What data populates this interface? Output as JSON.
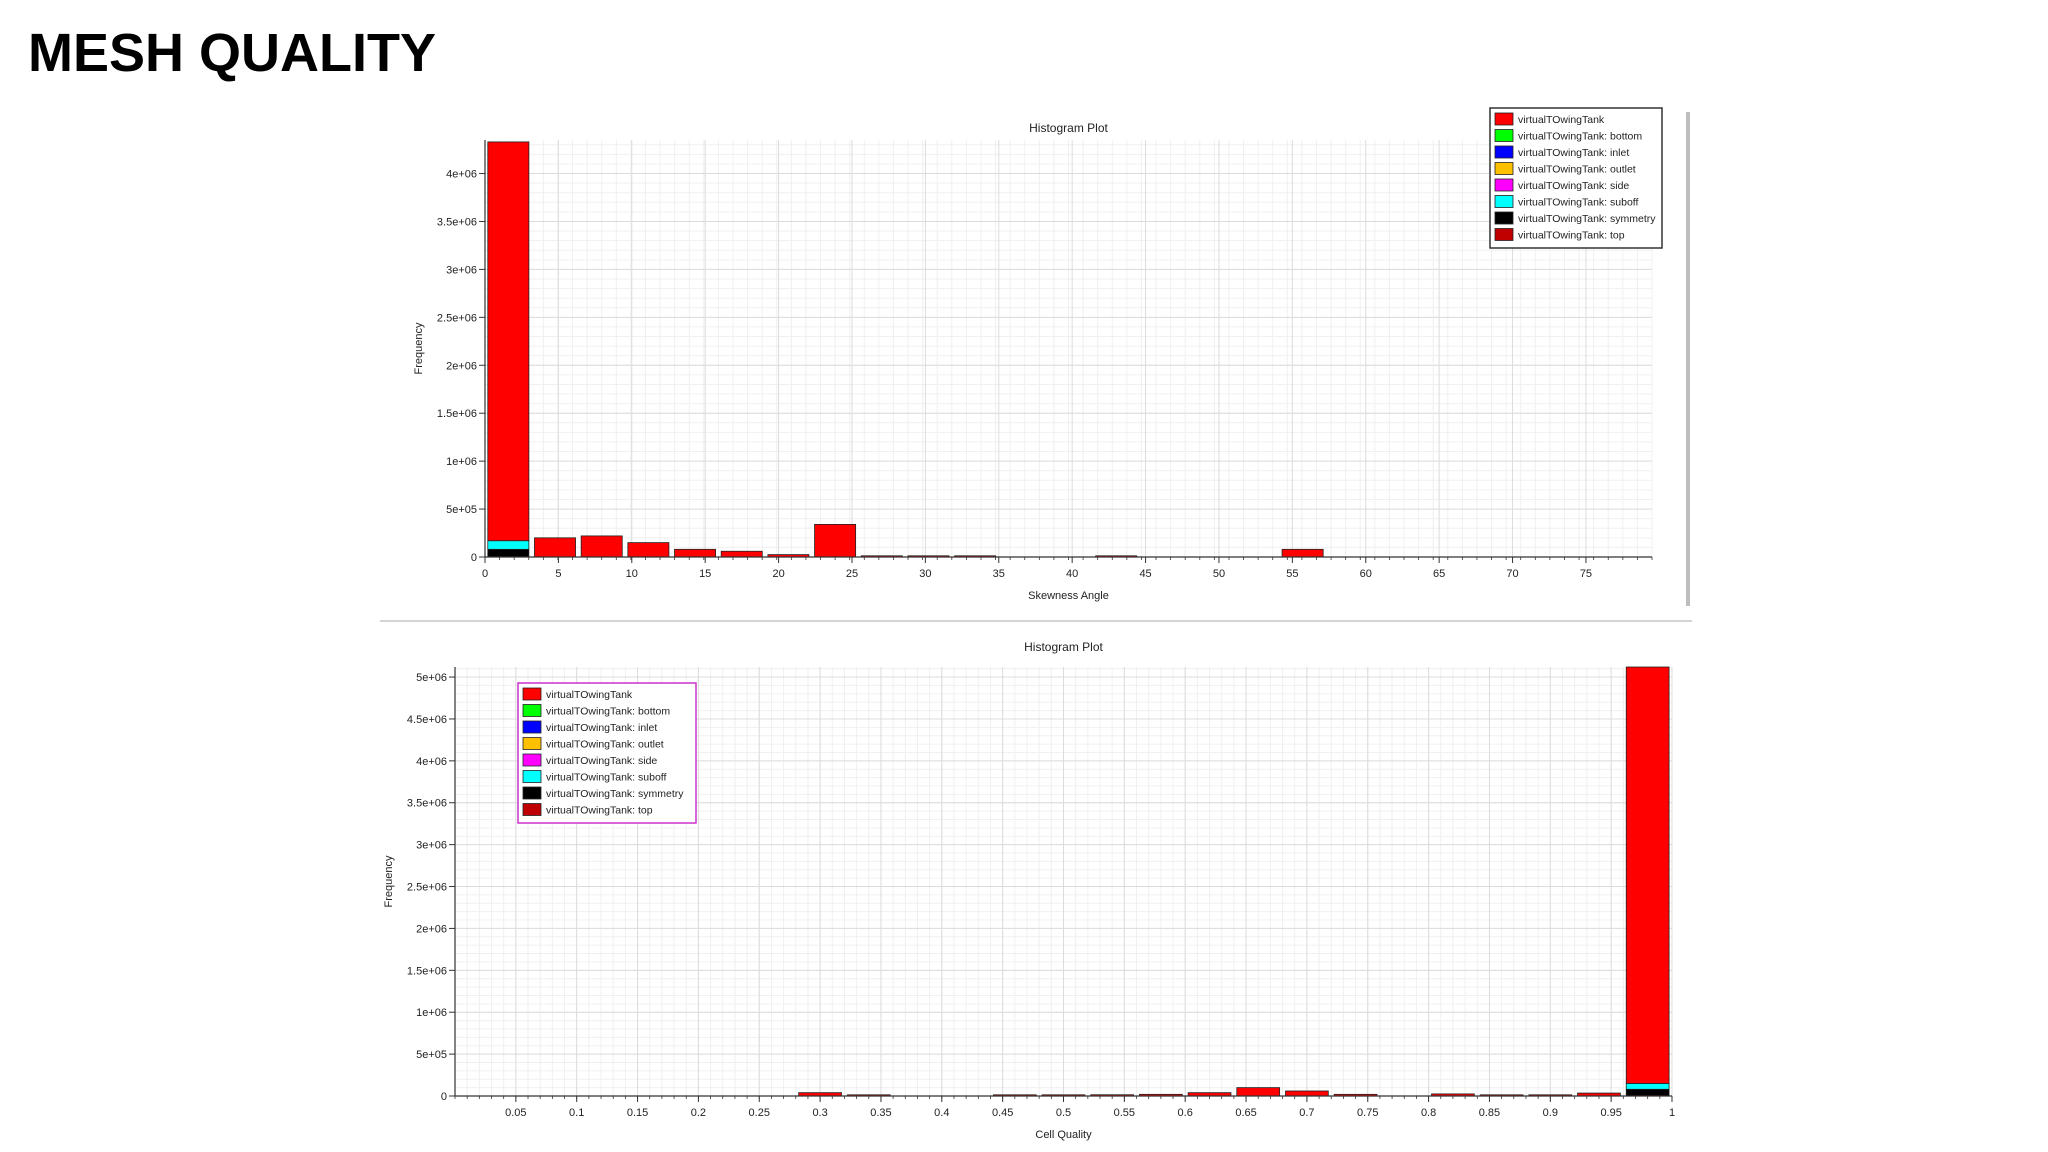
{
  "page": {
    "title": "MESH QUALITY"
  },
  "colors": {
    "red": "#ff0000",
    "green": "#00ff00",
    "blue": "#0000ff",
    "orange": "#ffc000",
    "magenta": "#ff00ff",
    "cyan": "#00ffff",
    "black": "#000000",
    "darkred": "#c00000"
  },
  "chart_data": [
    {
      "type": "bar",
      "title": "Histogram Plot",
      "xlabel": "Skewness Angle",
      "ylabel": "Frequency",
      "xlim": [
        0,
        79.5
      ],
      "ylim": [
        0,
        4350000
      ],
      "x_ticks": [
        0,
        5,
        10,
        15,
        20,
        25,
        30,
        35,
        40,
        45,
        50,
        55,
        60,
        65,
        70,
        75
      ],
      "x_tick_labels": [
        "0",
        "5",
        "10",
        "15",
        "20",
        "25",
        "30",
        "35",
        "40",
        "45",
        "50",
        "55",
        "60",
        "65",
        "70",
        "75"
      ],
      "y_ticks": [
        0,
        500000,
        1000000,
        1500000,
        2000000,
        2500000,
        3000000,
        3500000,
        4000000
      ],
      "y_tick_labels": [
        "0",
        "5e+05",
        "1e+06",
        "1.5e+06",
        "2e+06",
        "2.5e+06",
        "3e+06",
        "3.5e+06",
        "4e+06"
      ],
      "grid": true,
      "legend_position": "top-right",
      "legend_border": "#333333",
      "legend": [
        {
          "label": "virtualTOwingTank",
          "color": "#ff0000"
        },
        {
          "label": "virtualTOwingTank: bottom",
          "color": "#00ff00"
        },
        {
          "label": "virtualTOwingTank: inlet",
          "color": "#0000ff"
        },
        {
          "label": "virtualTOwingTank: outlet",
          "color": "#ffc000"
        },
        {
          "label": "virtualTOwingTank: side",
          "color": "#ff00ff"
        },
        {
          "label": "virtualTOwingTank: suboff",
          "color": "#00ffff"
        },
        {
          "label": "virtualTOwingTank: symmetry",
          "color": "#000000"
        },
        {
          "label": "virtualTOwingTank: top",
          "color": "#c00000"
        }
      ],
      "bin_width": 3.18,
      "bins": [
        {
          "center": 1.59,
          "segments": [
            {
              "value": 80000,
              "color": "#000000"
            },
            {
              "value": 90000,
              "color": "#00ffff"
            },
            {
              "value": 4160000,
              "color": "#ff0000"
            }
          ]
        },
        {
          "center": 4.77,
          "segments": [
            {
              "value": 200000,
              "color": "#ff0000"
            }
          ]
        },
        {
          "center": 7.95,
          "segments": [
            {
              "value": 220000,
              "color": "#ff0000"
            }
          ]
        },
        {
          "center": 11.13,
          "segments": [
            {
              "value": 150000,
              "color": "#ff0000"
            }
          ]
        },
        {
          "center": 14.31,
          "segments": [
            {
              "value": 80000,
              "color": "#ff0000"
            }
          ]
        },
        {
          "center": 17.49,
          "segments": [
            {
              "value": 60000,
              "color": "#ff0000"
            }
          ]
        },
        {
          "center": 20.67,
          "segments": [
            {
              "value": 25000,
              "color": "#ff0000"
            }
          ]
        },
        {
          "center": 23.85,
          "segments": [
            {
              "value": 340000,
              "color": "#ff0000"
            }
          ]
        },
        {
          "center": 27.03,
          "segments": [
            {
              "value": 4000,
              "color": "#ff0000"
            }
          ]
        },
        {
          "center": 30.21,
          "segments": [
            {
              "value": 6000,
              "color": "#ff0000"
            }
          ]
        },
        {
          "center": 33.39,
          "segments": [
            {
              "value": 3000,
              "color": "#ff0000"
            }
          ]
        },
        {
          "center": 43.0,
          "segments": [
            {
              "value": 3000,
              "color": "#ff0000"
            }
          ]
        },
        {
          "center": 55.7,
          "segments": [
            {
              "value": 80000,
              "color": "#ff0000"
            }
          ]
        }
      ]
    },
    {
      "type": "bar",
      "title": "Histogram Plot",
      "xlabel": "Cell Quality",
      "ylabel": "Frequency",
      "xlim": [
        0.0,
        1.0
      ],
      "ylim": [
        0,
        5120000
      ],
      "x_ticks": [
        0.05,
        0.1,
        0.15,
        0.2,
        0.25,
        0.3,
        0.35,
        0.4,
        0.45,
        0.5,
        0.55,
        0.6,
        0.65,
        0.7,
        0.75,
        0.8,
        0.85,
        0.9,
        0.95,
        1.0
      ],
      "x_tick_labels": [
        "0.05",
        "0.1",
        "0.15",
        "0.2",
        "0.25",
        "0.3",
        "0.35",
        "0.4",
        "0.45",
        "0.5",
        "0.55",
        "0.6",
        "0.65",
        "0.7",
        "0.75",
        "0.8",
        "0.85",
        "0.9",
        "0.95",
        "1"
      ],
      "y_ticks": [
        0,
        500000,
        1000000,
        1500000,
        2000000,
        2500000,
        3000000,
        3500000,
        4000000,
        4500000,
        5000000
      ],
      "y_tick_labels": [
        "0",
        "5e+05",
        "1e+06",
        "1.5e+06",
        "2e+06",
        "2.5e+06",
        "3e+06",
        "3.5e+06",
        "4e+06",
        "4.5e+06",
        "5e+06"
      ],
      "grid": true,
      "legend_position": "top-left",
      "legend_border": "#cc33cc",
      "legend": [
        {
          "label": "virtualTOwingTank",
          "color": "#ff0000"
        },
        {
          "label": "virtualTOwingTank: bottom",
          "color": "#00ff00"
        },
        {
          "label": "virtualTOwingTank: inlet",
          "color": "#0000ff"
        },
        {
          "label": "virtualTOwingTank: outlet",
          "color": "#ffc000"
        },
        {
          "label": "virtualTOwingTank: side",
          "color": "#ff00ff"
        },
        {
          "label": "virtualTOwingTank: suboff",
          "color": "#00ffff"
        },
        {
          "label": "virtualTOwingTank: symmetry",
          "color": "#000000"
        },
        {
          "label": "virtualTOwingTank: top",
          "color": "#c00000"
        }
      ],
      "bin_width": 0.04,
      "bins": [
        {
          "center": 0.3,
          "segments": [
            {
              "value": 40000,
              "color": "#ff0000"
            }
          ]
        },
        {
          "center": 0.34,
          "segments": [
            {
              "value": 8000,
              "color": "#ff0000"
            }
          ]
        },
        {
          "center": 0.46,
          "segments": [
            {
              "value": 8000,
              "color": "#ff0000"
            }
          ]
        },
        {
          "center": 0.5,
          "segments": [
            {
              "value": 10000,
              "color": "#ff0000"
            }
          ]
        },
        {
          "center": 0.54,
          "segments": [
            {
              "value": 15000,
              "color": "#ff0000"
            }
          ]
        },
        {
          "center": 0.58,
          "segments": [
            {
              "value": 20000,
              "color": "#ff0000"
            }
          ]
        },
        {
          "center": 0.62,
          "segments": [
            {
              "value": 40000,
              "color": "#ff0000"
            }
          ]
        },
        {
          "center": 0.66,
          "segments": [
            {
              "value": 100000,
              "color": "#ff0000"
            }
          ]
        },
        {
          "center": 0.7,
          "segments": [
            {
              "value": 60000,
              "color": "#ff0000"
            }
          ]
        },
        {
          "center": 0.74,
          "segments": [
            {
              "value": 20000,
              "color": "#ff0000"
            }
          ]
        },
        {
          "center": 0.82,
          "segments": [
            {
              "value": 25000,
              "color": "#ff0000"
            }
          ]
        },
        {
          "center": 0.86,
          "segments": [
            {
              "value": 10000,
              "color": "#ff0000"
            }
          ]
        },
        {
          "center": 0.9,
          "segments": [
            {
              "value": 8000,
              "color": "#ff0000"
            }
          ]
        },
        {
          "center": 0.94,
          "segments": [
            {
              "value": 35000,
              "color": "#ff0000"
            }
          ]
        },
        {
          "center": 0.98,
          "segments": [
            {
              "value": 80000,
              "color": "#000000"
            },
            {
              "value": 70000,
              "color": "#00ffff"
            },
            {
              "value": 4970000,
              "color": "#ff0000"
            }
          ]
        }
      ]
    }
  ]
}
